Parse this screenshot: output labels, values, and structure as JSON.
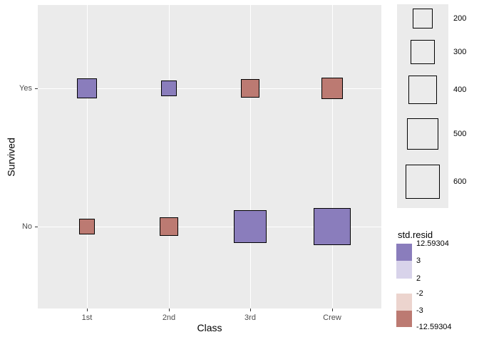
{
  "chart_data": {
    "type": "scatter",
    "subtype": "balloon-plot-square-markers",
    "title": "",
    "xlabel": "Class",
    "ylabel": "Survived",
    "x_categories": [
      "1st",
      "2nd",
      "3rd",
      "Crew"
    ],
    "y_categories": [
      "Yes",
      "No"
    ],
    "marker": "square",
    "size_encoding": "count (area of square)",
    "color_encoding": "std.resid (binned diverging scale)",
    "points": [
      {
        "x": "1st",
        "y": "Yes",
        "count": 203,
        "std_resid": 12.59304
      },
      {
        "x": "2nd",
        "y": "Yes",
        "count": 118,
        "std_resid": 3.5
      },
      {
        "x": "3rd",
        "y": "Yes",
        "count": 178,
        "std_resid": -4.9
      },
      {
        "x": "Crew",
        "y": "Yes",
        "count": 212,
        "std_resid": -6.9
      },
      {
        "x": "1st",
        "y": "No",
        "count": 122,
        "std_resid": -12.59304
      },
      {
        "x": "2nd",
        "y": "No",
        "count": 167,
        "std_resid": -3.5
      },
      {
        "x": "3rd",
        "y": "No",
        "count": 528,
        "std_resid": 4.9
      },
      {
        "x": "Crew",
        "y": "No",
        "count": 673,
        "std_resid": 6.9
      }
    ],
    "size_legend": {
      "labels": [
        "200",
        "300",
        "400",
        "500",
        "600"
      ]
    },
    "color_legend": {
      "title": "std.resid",
      "tick_labels": [
        "12.59304",
        "3",
        "2",
        "-2",
        "-3",
        "-12.59304"
      ],
      "bins": [
        {
          "range": "3 to 12.59304",
          "color": "#8A7DBC"
        },
        {
          "range": "2 to 3",
          "color": "#D8D3EA"
        },
        {
          "range": "-2 to 2",
          "color": "none"
        },
        {
          "range": "-3 to -2",
          "color": "#ECD4CE"
        },
        {
          "range": "-12.59304 to -3",
          "color": "#BC7A72"
        }
      ]
    },
    "colors": {
      "panel_background": "#EBEBEB",
      "gridline": "#FFFFFF",
      "positive_strong": "#8A7DBC",
      "positive_weak": "#D8D3EA",
      "negative_weak": "#ECD4CE",
      "negative_strong": "#BC7A72",
      "square_border": "#000000",
      "tick_label_text": "#4D4D4D",
      "title_text": "#000000"
    },
    "layout_hints": {
      "grid": "major gridlines only, white on grey panel",
      "size_legend_position": "right top",
      "color_legend_position": "right bottom"
    }
  }
}
